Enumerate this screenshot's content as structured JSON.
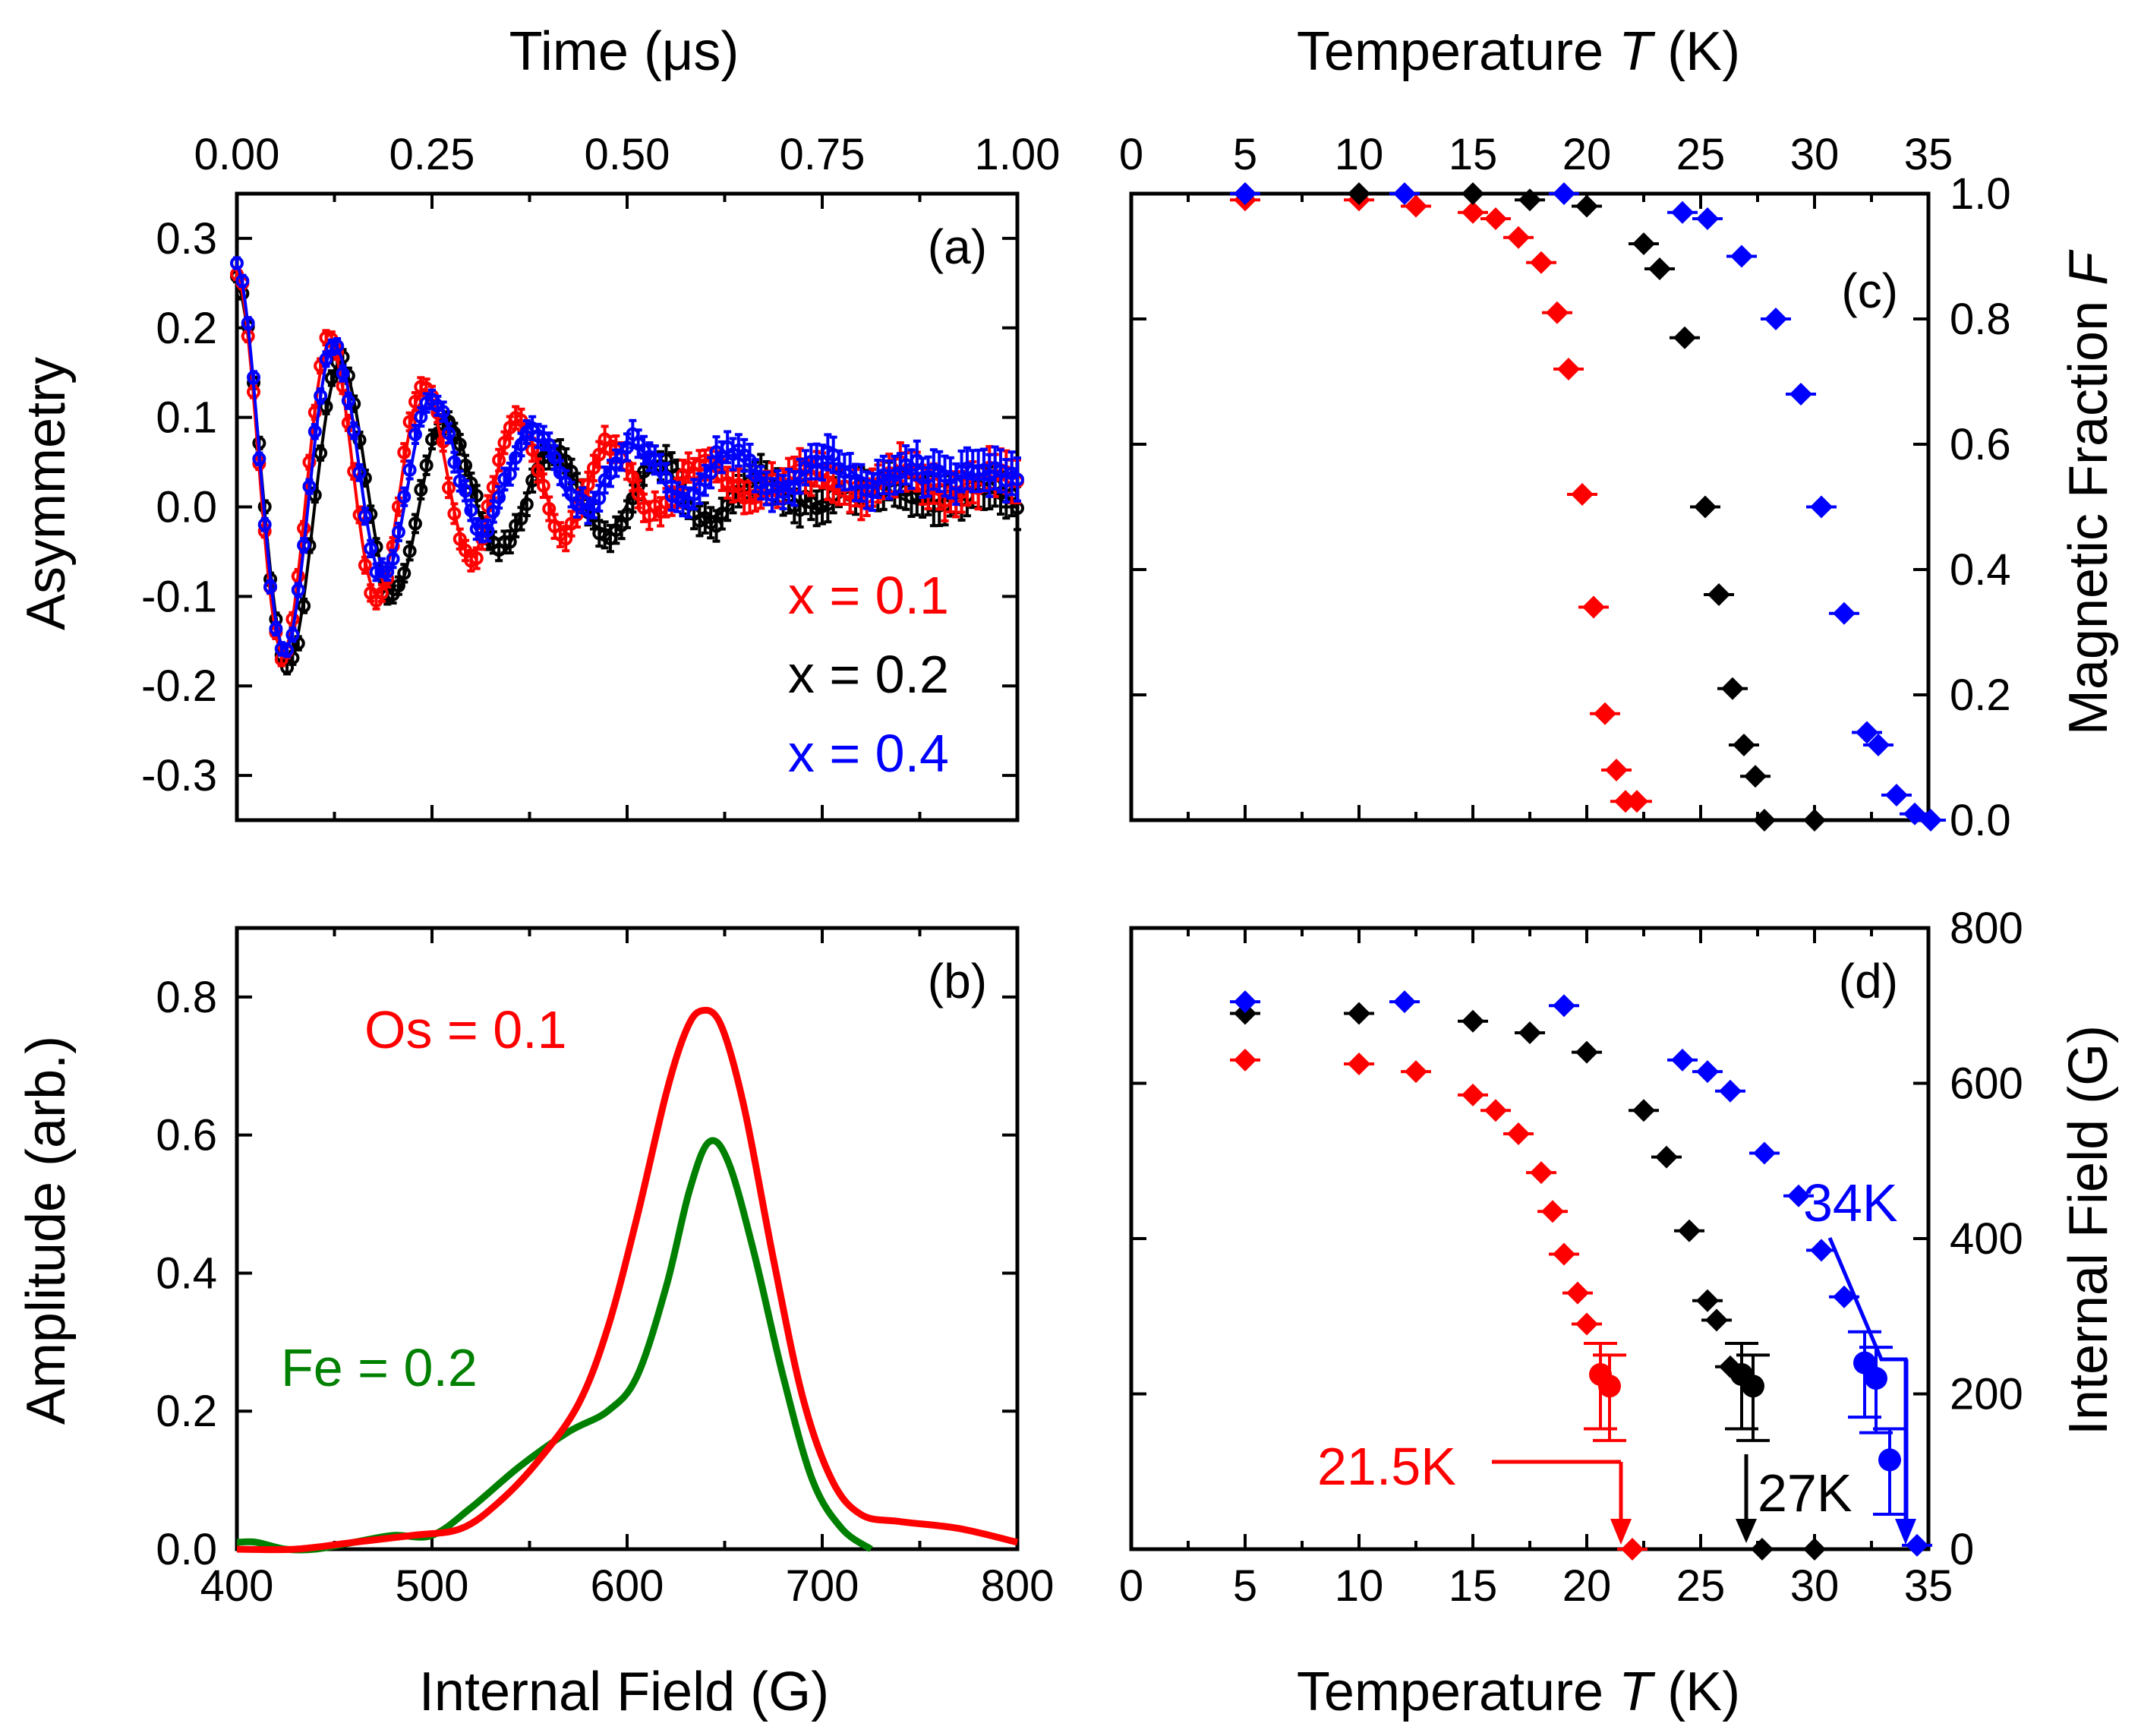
{
  "colors": {
    "red": "#ff0000",
    "black": "#000000",
    "blue": "#0000ff",
    "green": "#008000"
  },
  "chart_data": [
    {
      "id": "a",
      "type": "line",
      "panel_label": "(a)",
      "xlabel_top": "Time (μs)",
      "ylabel": "Asymmetry",
      "xlim": [
        0,
        1
      ],
      "ylim": [
        -0.35,
        0.35
      ],
      "xticks": [
        "0.00",
        "0.25",
        "0.50",
        "0.75",
        "1.00"
      ],
      "yticks": [
        "-0.3",
        "-0.2",
        "-0.1",
        "0.0",
        "0.1",
        "0.2",
        "0.3"
      ],
      "series": [
        {
          "name": "x = 0.1",
          "color": "#ff0000",
          "A0": 0.26,
          "freq": 8.3,
          "tau": 0.29,
          "tail": 0.01,
          "osc_frac": 0.9
        },
        {
          "name": "x = 0.2",
          "color": "#000000",
          "A0": 0.25,
          "freq": 7.4,
          "tau": 0.27,
          "tail": 0.005,
          "osc_frac": 0.95
        },
        {
          "name": "x = 0.4",
          "color": "#0000ff",
          "A0": 0.27,
          "freq": 7.9,
          "tau": 0.25,
          "tail": 0.02,
          "osc_frac": 0.9
        }
      ]
    },
    {
      "id": "b",
      "type": "line",
      "panel_label": "(b)",
      "xlabel": "Internal Field (G)",
      "ylabel": "Amplitude (arb.)",
      "xlim": [
        400,
        800
      ],
      "ylim": [
        0,
        0.9
      ],
      "xticks": [
        "400",
        "500",
        "600",
        "700",
        "800"
      ],
      "yticks": [
        "0.0",
        "0.2",
        "0.4",
        "0.6",
        "0.8"
      ],
      "series": [
        {
          "name": "Os = 0.1",
          "color": "#ff0000",
          "x": [
            400,
            430,
            460,
            490,
            515,
            535,
            555,
            575,
            590,
            605,
            620,
            630,
            638,
            648,
            660,
            675,
            690,
            705,
            720,
            740,
            770,
            800
          ],
          "y": [
            0.0,
            0.0,
            0.01,
            0.02,
            0.03,
            0.07,
            0.13,
            0.21,
            0.32,
            0.48,
            0.66,
            0.75,
            0.78,
            0.76,
            0.64,
            0.42,
            0.22,
            0.1,
            0.05,
            0.04,
            0.03,
            0.01
          ]
        },
        {
          "name": "Fe = 0.2",
          "color": "#008000",
          "x": [
            400,
            410,
            425,
            440,
            460,
            480,
            500,
            520,
            545,
            570,
            590,
            605,
            620,
            632,
            642,
            652,
            665,
            680,
            695,
            710,
            725
          ],
          "y": [
            0.01,
            0.01,
            0.0,
            0.0,
            0.01,
            0.02,
            0.02,
            0.06,
            0.12,
            0.17,
            0.2,
            0.25,
            0.38,
            0.52,
            0.59,
            0.56,
            0.43,
            0.25,
            0.1,
            0.03,
            0.0
          ]
        }
      ]
    },
    {
      "id": "c",
      "type": "scatter",
      "panel_label": "(c)",
      "xlabel_top": "Temperature T (K)",
      "ylabel_right": "Magnetic Fraction F",
      "xlim": [
        0,
        35
      ],
      "ylim": [
        0,
        1
      ],
      "xticks": [
        "0",
        "5",
        "10",
        "15",
        "20",
        "25",
        "30",
        "35"
      ],
      "yticks": [
        "0.0",
        "0.2",
        "0.4",
        "0.6",
        "0.8",
        "1.0"
      ],
      "series": [
        {
          "name": "x = 0.1",
          "color": "#ff0000",
          "x": [
            5,
            10,
            12.5,
            15,
            16,
            17,
            18,
            18.7,
            19.2,
            19.8,
            20.3,
            20.8,
            21.3,
            21.7,
            22.2
          ],
          "y": [
            0.99,
            0.99,
            0.98,
            0.97,
            0.96,
            0.93,
            0.89,
            0.81,
            0.72,
            0.52,
            0.34,
            0.17,
            0.08,
            0.03,
            0.03
          ]
        },
        {
          "name": "x = 0.2",
          "color": "#000000",
          "x": [
            5,
            10,
            15,
            17.5,
            20,
            22.5,
            23.2,
            24.3,
            25.2,
            25.8,
            26.4,
            26.9,
            27.4,
            27.8,
            30
          ],
          "y": [
            1.0,
            1.0,
            1.0,
            0.99,
            0.98,
            0.92,
            0.88,
            0.77,
            0.5,
            0.36,
            0.21,
            0.12,
            0.07,
            0.0,
            0.0
          ]
        },
        {
          "name": "x = 0.4",
          "color": "#0000ff",
          "x": [
            5,
            12,
            19,
            24.2,
            25.3,
            26.8,
            28.3,
            29.4,
            30.3,
            31.3,
            32.3,
            32.8,
            33.6,
            34.4,
            35.1
          ],
          "y": [
            1.0,
            1.0,
            1.0,
            0.97,
            0.96,
            0.9,
            0.8,
            0.68,
            0.5,
            0.33,
            0.14,
            0.12,
            0.04,
            0.01,
            0.0
          ]
        }
      ]
    },
    {
      "id": "d",
      "type": "scatter",
      "panel_label": "(d)",
      "xlabel": "Temperature T (K)",
      "ylabel_right": "Internal Field (G)",
      "xlim": [
        0,
        35
      ],
      "ylim": [
        0,
        800
      ],
      "xticks": [
        "0",
        "5",
        "10",
        "15",
        "20",
        "25",
        "30",
        "35"
      ],
      "yticks": [
        "0",
        "200",
        "400",
        "600",
        "800"
      ],
      "series": [
        {
          "name": "x = 0.1",
          "color": "#ff0000",
          "x": [
            5,
            10,
            12.5,
            15,
            16,
            17,
            18,
            18.5,
            19,
            19.6,
            20,
            20.6,
            21,
            22
          ],
          "y": [
            630,
            625,
            615,
            585,
            565,
            535,
            485,
            435,
            380,
            330,
            290,
            225,
            210,
            0
          ]
        },
        {
          "name": "x = 0.2",
          "color": "#000000",
          "x": [
            5,
            10,
            15,
            17.5,
            20,
            22.5,
            23.5,
            24.5,
            25.3,
            25.7,
            26.3,
            26.8,
            27.3,
            27.7,
            30
          ],
          "y": [
            690,
            690,
            680,
            665,
            640,
            565,
            505,
            410,
            320,
            295,
            235,
            225,
            210,
            0,
            0
          ]
        },
        {
          "name": "x = 0.4",
          "color": "#0000ff",
          "x": [
            5,
            12,
            19,
            24.2,
            25.3,
            26.3,
            27.8,
            29.3,
            30.3,
            31.3,
            32.2,
            32.7,
            33.3,
            34.5
          ],
          "y": [
            705,
            705,
            700,
            630,
            615,
            590,
            510,
            455,
            385,
            325,
            240,
            220,
            115,
            5
          ]
        }
      ],
      "annotations": [
        {
          "text": "21.5K",
          "color": "#ff0000"
        },
        {
          "text": "27K",
          "color": "#000000"
        },
        {
          "text": "34K",
          "color": "#0000ff"
        }
      ]
    }
  ],
  "legend_a": [
    {
      "text": "x = 0.1",
      "color": "#ff0000"
    },
    {
      "text": "x = 0.2",
      "color": "#000000"
    },
    {
      "text": "x = 0.4",
      "color": "#0000ff"
    }
  ],
  "legend_b": [
    {
      "text": "Os = 0.1",
      "color": "#ff0000"
    },
    {
      "text": "Fe = 0.2",
      "color": "#008000"
    }
  ],
  "labels": {
    "top_left_xlabel": "Time (μs)",
    "top_right_xlabel_prefix": "Temperature ",
    "top_right_xlabel_italic": "T",
    "top_right_xlabel_suffix": " (K)",
    "bottom_left_xlabel": "Internal Field (G)",
    "bottom_right_xlabel_prefix": "Temperature ",
    "bottom_right_xlabel_italic": "T",
    "bottom_right_xlabel_suffix": " (K)",
    "asymmetry_ylabel": "Asymmetry",
    "amplitude_ylabel": "Amplitude (arb.)",
    "fraction_ylabel_prefix": "Magnetic Fraction ",
    "fraction_ylabel_italic": "F",
    "field_ylabel": "Internal Field (G)"
  }
}
